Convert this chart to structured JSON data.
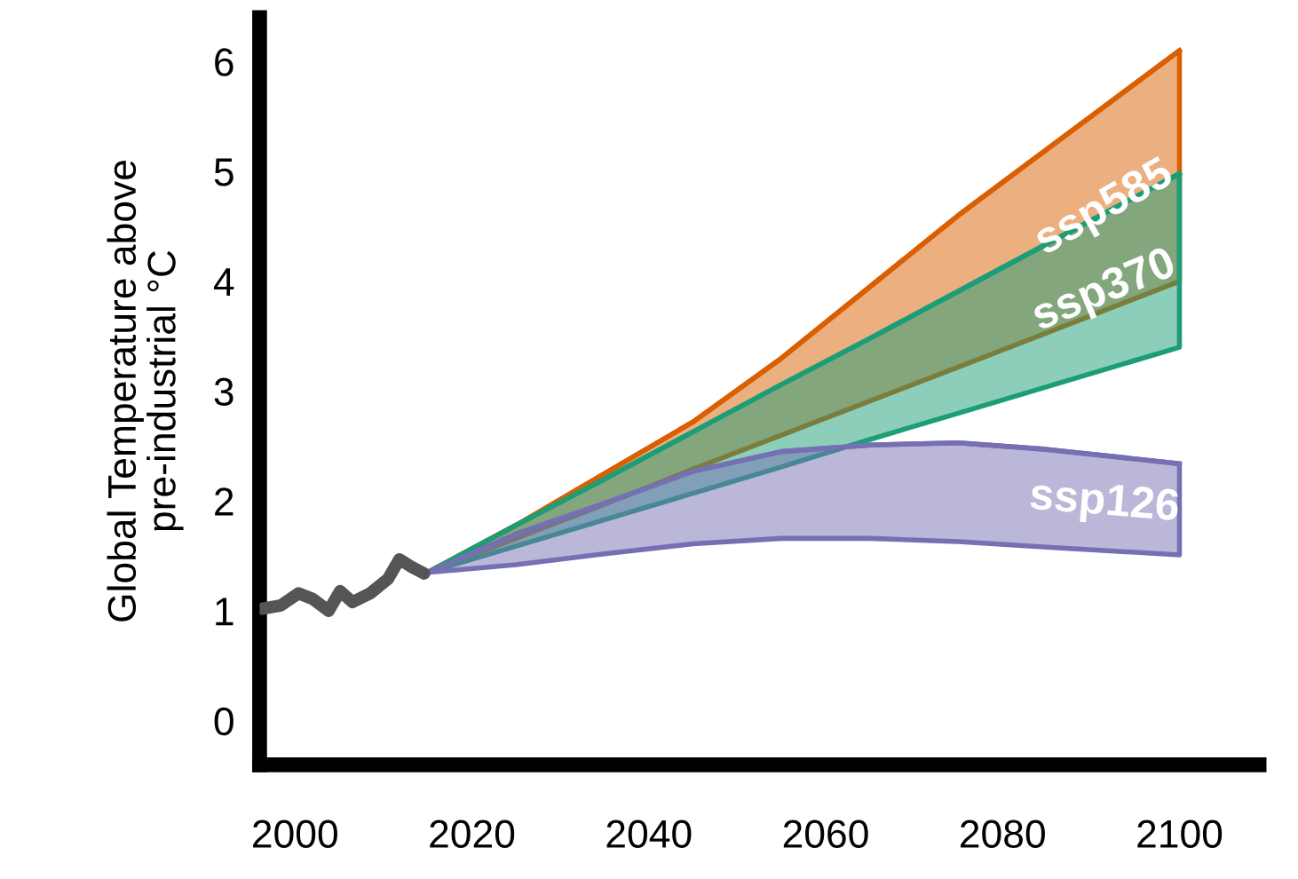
{
  "chart_data": {
    "type": "line",
    "ylabel": "Global Temperature above\npre-industrial °C",
    "xlim": [
      1996,
      2109
    ],
    "xticks": [
      2000,
      2020,
      2040,
      2060,
      2080,
      2100
    ],
    "ylim": [
      -0.4,
      6.4
    ],
    "yticks": [
      0,
      1,
      2,
      3,
      4,
      5,
      6
    ],
    "grid": false,
    "series": [
      {
        "color": "#555555",
        "x": [
          1996.3,
          1998.4,
          2000.4,
          2002,
          2003.8,
          2005.1,
          2006.5,
          2008.5,
          2010.5,
          2011.8,
          2013.2,
          2014.6
        ],
        "values": [
          1.02,
          1.05,
          1.16,
          1.11,
          1.0,
          1.18,
          1.08,
          1.16,
          1.29,
          1.47,
          1.4,
          1.34
        ]
      },
      {
        "name": "ssp585",
        "color": "#d95f02",
        "x": [
          2015,
          2025,
          2035,
          2045,
          2055,
          2065,
          2075,
          2085,
          2100
        ],
        "lower": [
          1.35,
          1.66,
          1.97,
          2.29,
          2.6,
          2.91,
          3.22,
          3.53,
          4.0
        ],
        "upper": [
          1.35,
          1.78,
          2.25,
          2.72,
          3.3,
          3.95,
          4.6,
          5.2,
          6.1
        ],
        "values": [
          1.35,
          1.78,
          2.25,
          2.72,
          3.3,
          3.95,
          4.6,
          5.2,
          6.1
        ]
      },
      {
        "name": "ssp370",
        "color": "#1b9e77",
        "x": [
          2015,
          2025,
          2035,
          2045,
          2055,
          2065,
          2075,
          2085,
          2100
        ],
        "lower": [
          1.35,
          1.59,
          1.83,
          2.07,
          2.31,
          2.56,
          2.8,
          3.04,
          3.4
        ],
        "upper": [
          1.35,
          1.78,
          2.2,
          2.63,
          3.06,
          3.48,
          3.91,
          4.34,
          4.98
        ],
        "values": [
          1.35,
          1.78,
          2.2,
          2.63,
          3.06,
          3.48,
          3.91,
          4.34,
          4.98
        ]
      },
      {
        "name": "ssp126",
        "color": "#7570b3",
        "x": [
          2015,
          2025,
          2035,
          2045,
          2055,
          2065,
          2075,
          2085,
          2100
        ],
        "lower": [
          1.35,
          1.42,
          1.52,
          1.61,
          1.66,
          1.66,
          1.63,
          1.58,
          1.51
        ],
        "upper": [
          1.35,
          1.7,
          1.98,
          2.27,
          2.45,
          2.51,
          2.53,
          2.47,
          2.34
        ],
        "values": [
          1.35,
          1.7,
          1.98,
          2.27,
          2.45,
          2.51,
          2.53,
          2.47,
          2.34
        ]
      }
    ]
  }
}
